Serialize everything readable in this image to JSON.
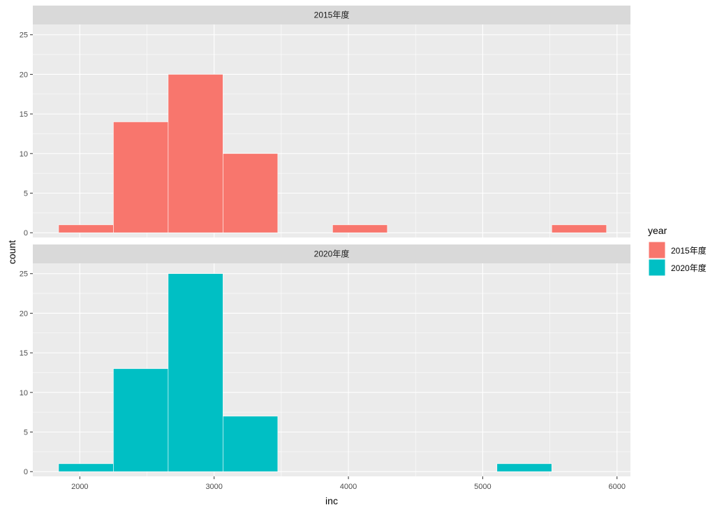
{
  "chart_data": {
    "type": "bar",
    "subtype": "faceted-histogram",
    "xlabel": "inc",
    "ylabel": "count",
    "x_ticks": [
      2000,
      3000,
      4000,
      5000,
      6000
    ],
    "y_ticks": [
      0,
      5,
      10,
      15,
      20,
      25
    ],
    "xlim": [
      1650,
      6100
    ],
    "ylim": [
      -0.6,
      26.3
    ],
    "grid": true,
    "bin_width": 408,
    "legend": {
      "title": "year",
      "position": "right",
      "entries": [
        "2015年度",
        "2020年度"
      ]
    },
    "facets": [
      {
        "label": "2015年度",
        "color": "#F8766D",
        "bins": [
          {
            "x0": 1842,
            "x1": 2250,
            "count": 1
          },
          {
            "x0": 2250,
            "x1": 2658,
            "count": 14
          },
          {
            "x0": 2658,
            "x1": 3066,
            "count": 20
          },
          {
            "x0": 3066,
            "x1": 3474,
            "count": 10
          },
          {
            "x0": 3882,
            "x1": 4290,
            "count": 1
          },
          {
            "x0": 5514,
            "x1": 5922,
            "count": 1
          }
        ]
      },
      {
        "label": "2020年度",
        "color": "#00BFC4",
        "bins": [
          {
            "x0": 1842,
            "x1": 2250,
            "count": 1
          },
          {
            "x0": 2250,
            "x1": 2658,
            "count": 13
          },
          {
            "x0": 2658,
            "x1": 3066,
            "count": 25
          },
          {
            "x0": 3066,
            "x1": 3474,
            "count": 7
          },
          {
            "x0": 5106,
            "x1": 5514,
            "count": 1
          }
        ]
      }
    ]
  },
  "colors": {
    "panel_background": "#EBEBEB",
    "strip_background": "#D9D9D9",
    "grid": "#FFFFFF",
    "bar_outline": "#FFFFFF"
  }
}
